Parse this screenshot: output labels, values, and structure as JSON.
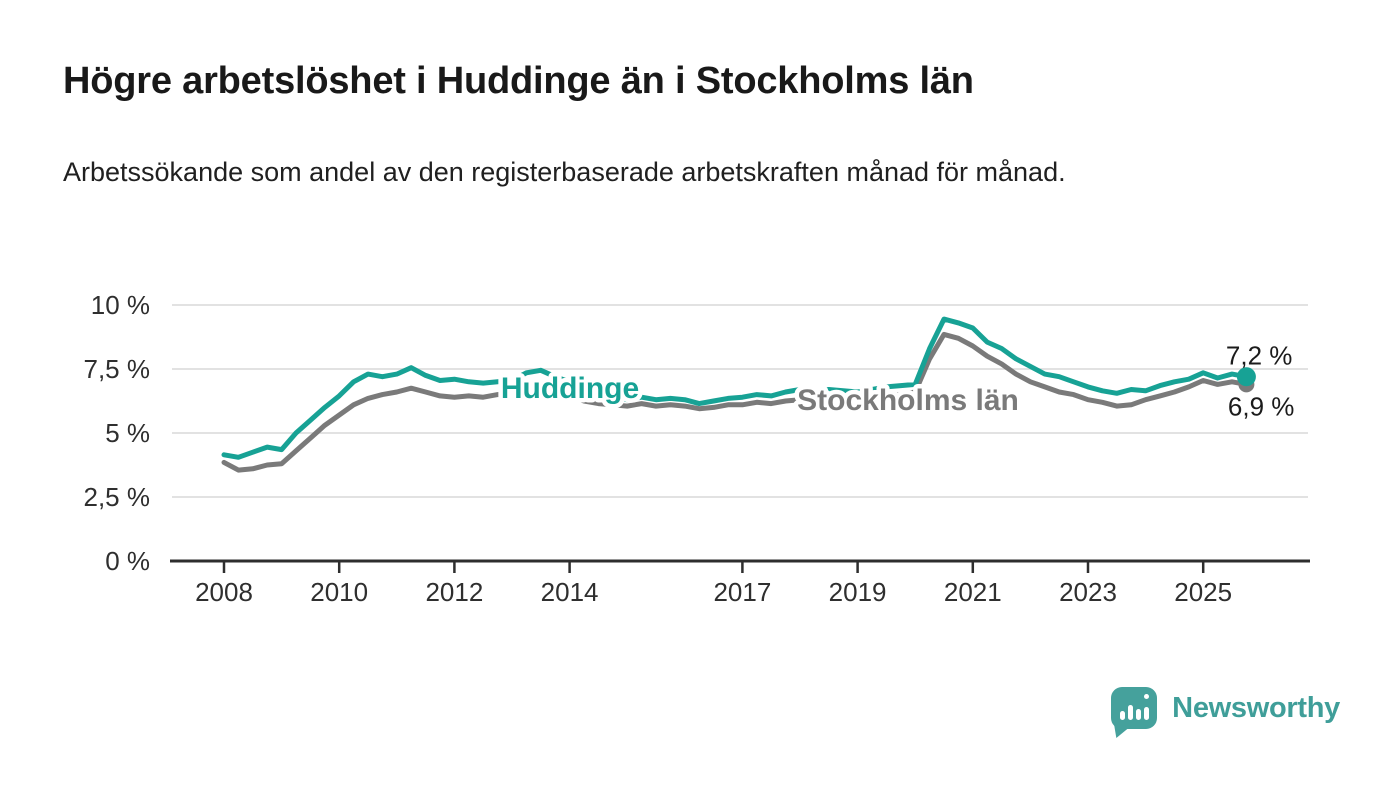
{
  "header": {
    "title": "Högre arbetslöshet i Huddinge än i Stockholms län",
    "subtitle": "Arbetssökande som andel av den registerbaserade arbetskraften månad för månad."
  },
  "footer": {
    "brand": "Newsworthy"
  },
  "colors": {
    "huddinge": "#17a295",
    "stockholms_lan": "#7a7a7a",
    "grid": "#d8d8d8",
    "axis": "#2e2e2e",
    "tick_text": "#2f2f2f",
    "value_text": "#1b1b1b",
    "logo_teal": "#3f9e99"
  },
  "chart_data": {
    "type": "line",
    "title": "Högre arbetslöshet i Huddinge än i Stockholms län",
    "subtitle": "Arbetssökande som andel av den registerbaserade arbetskraften månad för månad.",
    "xlabel": "",
    "ylabel": "",
    "ylim": [
      0,
      10
    ],
    "xlim": [
      2007.1,
      2026.85
    ],
    "grid": "horizontal",
    "legend": "inline-series-labels",
    "x": [
      2008.0,
      2008.25,
      2008.5,
      2008.75,
      2009.0,
      2009.25,
      2009.5,
      2009.75,
      2010.0,
      2010.25,
      2010.5,
      2010.75,
      2011.0,
      2011.25,
      2011.5,
      2011.75,
      2012.0,
      2012.25,
      2012.5,
      2012.75,
      2013.0,
      2013.25,
      2013.5,
      2013.75,
      2014.0,
      2014.25,
      2014.5,
      2014.75,
      2015.0,
      2015.25,
      2015.5,
      2015.75,
      2016.0,
      2016.25,
      2016.5,
      2016.75,
      2017.0,
      2017.25,
      2017.5,
      2017.75,
      2018.0,
      2018.25,
      2018.5,
      2018.75,
      2019.0,
      2019.25,
      2019.5,
      2019.75,
      2020.0,
      2020.25,
      2020.5,
      2020.75,
      2021.0,
      2021.25,
      2021.5,
      2021.75,
      2022.0,
      2022.25,
      2022.5,
      2022.75,
      2023.0,
      2023.25,
      2023.5,
      2023.75,
      2024.0,
      2024.25,
      2024.5,
      2024.75,
      2025.0,
      2025.25,
      2025.5,
      2025.75
    ],
    "series": [
      {
        "name": "Huddinge",
        "color": "#17a295",
        "values": [
          4.15,
          4.05,
          4.25,
          4.45,
          4.35,
          5.0,
          5.5,
          6.0,
          6.45,
          7.0,
          7.3,
          7.2,
          7.3,
          7.55,
          7.25,
          7.05,
          7.1,
          7.0,
          6.95,
          7.0,
          7.05,
          7.35,
          7.45,
          7.2,
          7.0,
          6.6,
          6.35,
          6.45,
          6.3,
          6.4,
          6.3,
          6.35,
          6.3,
          6.15,
          6.25,
          6.35,
          6.4,
          6.5,
          6.45,
          6.6,
          6.7,
          6.6,
          6.7,
          6.65,
          6.6,
          6.7,
          6.8,
          6.85,
          6.9,
          8.3,
          9.45,
          9.3,
          9.1,
          8.55,
          8.3,
          7.9,
          7.6,
          7.3,
          7.2,
          7.0,
          6.8,
          6.65,
          6.55,
          6.7,
          6.65,
          6.85,
          7.0,
          7.1,
          7.35,
          7.15,
          7.3,
          7.2
        ]
      },
      {
        "name": "Stockholms län",
        "color": "#7a7a7a",
        "values": [
          3.85,
          3.55,
          3.6,
          3.75,
          3.8,
          4.3,
          4.8,
          5.3,
          5.7,
          6.1,
          6.35,
          6.5,
          6.6,
          6.75,
          6.6,
          6.45,
          6.4,
          6.45,
          6.4,
          6.5,
          6.55,
          6.7,
          6.75,
          6.6,
          6.45,
          6.25,
          6.15,
          6.1,
          6.05,
          6.15,
          6.05,
          6.1,
          6.05,
          5.95,
          6.0,
          6.1,
          6.1,
          6.2,
          6.15,
          6.25,
          6.3,
          6.25,
          6.3,
          6.3,
          6.3,
          6.4,
          6.45,
          6.5,
          6.6,
          7.9,
          8.85,
          8.7,
          8.4,
          8.0,
          7.7,
          7.3,
          7.0,
          6.8,
          6.6,
          6.5,
          6.3,
          6.2,
          6.05,
          6.1,
          6.3,
          6.45,
          6.6,
          6.8,
          7.05,
          6.9,
          7.0,
          6.9
        ]
      }
    ],
    "end_labels": [
      {
        "series": "Huddinge",
        "text": "7,2 %"
      },
      {
        "series": "Stockholms län",
        "text": "6,9 %"
      }
    ],
    "yticks": [
      {
        "value": 0,
        "label": "0 %"
      },
      {
        "value": 2.5,
        "label": "2,5 %"
      },
      {
        "value": 5,
        "label": "5 %"
      },
      {
        "value": 7.5,
        "label": "7,5 %"
      },
      {
        "value": 10,
        "label": "10 %"
      }
    ],
    "xticks": [
      {
        "value": 2008,
        "label": "2008"
      },
      {
        "value": 2010,
        "label": "2010"
      },
      {
        "value": 2012,
        "label": "2012"
      },
      {
        "value": 2014,
        "label": "2014"
      },
      {
        "value": 2017,
        "label": "2017"
      },
      {
        "value": 2019,
        "label": "2019"
      },
      {
        "value": 2021,
        "label": "2021"
      },
      {
        "value": 2023,
        "label": "2023"
      },
      {
        "value": 2025,
        "label": "2025"
      }
    ]
  }
}
